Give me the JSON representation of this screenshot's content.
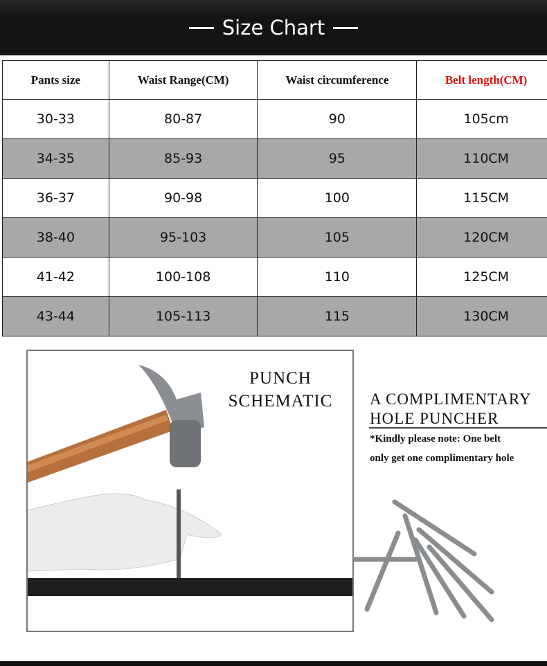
{
  "title": "Size Chart",
  "table": {
    "headers": [
      "Pants size",
      "Waist Range(CM)",
      "Waist circumference",
      "Belt length(CM)"
    ],
    "rows": [
      [
        "30-33",
        "80-87",
        "90",
        "105cm"
      ],
      [
        "34-35",
        "85-93",
        "95",
        "110CM"
      ],
      [
        "36-37",
        "90-98",
        "100",
        "115CM"
      ],
      [
        "38-40",
        "95-103",
        "105",
        "120CM"
      ],
      [
        "41-42",
        "100-108",
        "110",
        "125CM"
      ],
      [
        "43-44",
        "105-113",
        "115",
        "130CM"
      ]
    ]
  },
  "schematic": {
    "line1": "PUNCH",
    "line2": "SCHEMATIC"
  },
  "puncher": {
    "line1": "A COMPLIMENTARY",
    "line2": "HOLE PUNCHER",
    "note1": "*Kindly please note:  One belt",
    "note2": "only get one complimentary hole"
  },
  "colors": {
    "header_bg": "#141414",
    "highlight": "#e01010",
    "row_gray": "#a8a8a8"
  }
}
